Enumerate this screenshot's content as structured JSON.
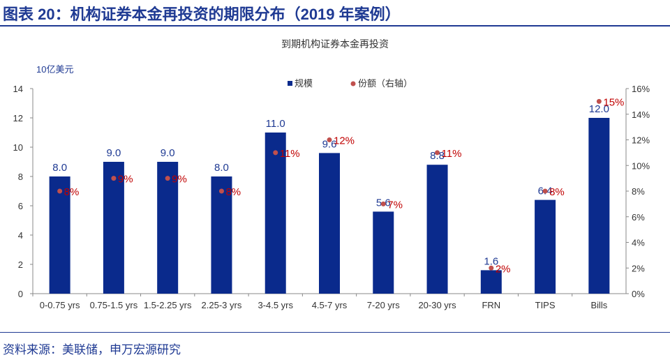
{
  "header": {
    "title": "图表 20：机构证券本金再投资的期限分布（2019 年案例）"
  },
  "footer": {
    "source": "资料来源：美联储，申万宏源研究"
  },
  "colors": {
    "bar": "#0a2a8c",
    "dot": "#c0504d",
    "pct_label": "#c00000",
    "bar_label": "#1f3a93",
    "accent": "#1f3a93"
  },
  "chart_data": {
    "type": "bar",
    "title": "到期机构证券本金再投资",
    "ylabel": "10亿美元",
    "ylim": [
      0,
      14
    ],
    "yticks": [
      "0",
      "2",
      "4",
      "6",
      "8",
      "10",
      "12",
      "14"
    ],
    "y2lim": [
      0,
      16
    ],
    "y2ticks": [
      "0%",
      "2%",
      "4%",
      "6%",
      "8%",
      "10%",
      "12%",
      "14%",
      "16%"
    ],
    "legend_position": "top",
    "categories": [
      "0-0.75 yrs",
      "0.75-1.5 yrs",
      "1.5-2.25 yrs",
      "2.25-3 yrs",
      "3-4.5 yrs",
      "4.5-7 yrs",
      "7-20 yrs",
      "20-30 yrs",
      "FRN",
      "TIPS",
      "Bills"
    ],
    "series": [
      {
        "name": "规模",
        "type": "bar",
        "axis": "left",
        "values": [
          8.0,
          9.0,
          9.0,
          8.0,
          11.0,
          9.6,
          5.6,
          8.8,
          1.6,
          6.4,
          12.0
        ],
        "labels": [
          "8.0",
          "9.0",
          "9.0",
          "8.0",
          "11.0",
          "9.6",
          "5.6",
          "8.8",
          "1.6",
          "6.4",
          "12.0"
        ]
      },
      {
        "name": "份额（右轴）",
        "type": "scatter",
        "axis": "right",
        "values": [
          8,
          9,
          9,
          8,
          11,
          12,
          7,
          11,
          2,
          8,
          15
        ],
        "labels": [
          "8%",
          "9%",
          "9%",
          "8%",
          "11%",
          "12%",
          "7%",
          "11%",
          "2%",
          "8%",
          "15%"
        ]
      }
    ]
  }
}
